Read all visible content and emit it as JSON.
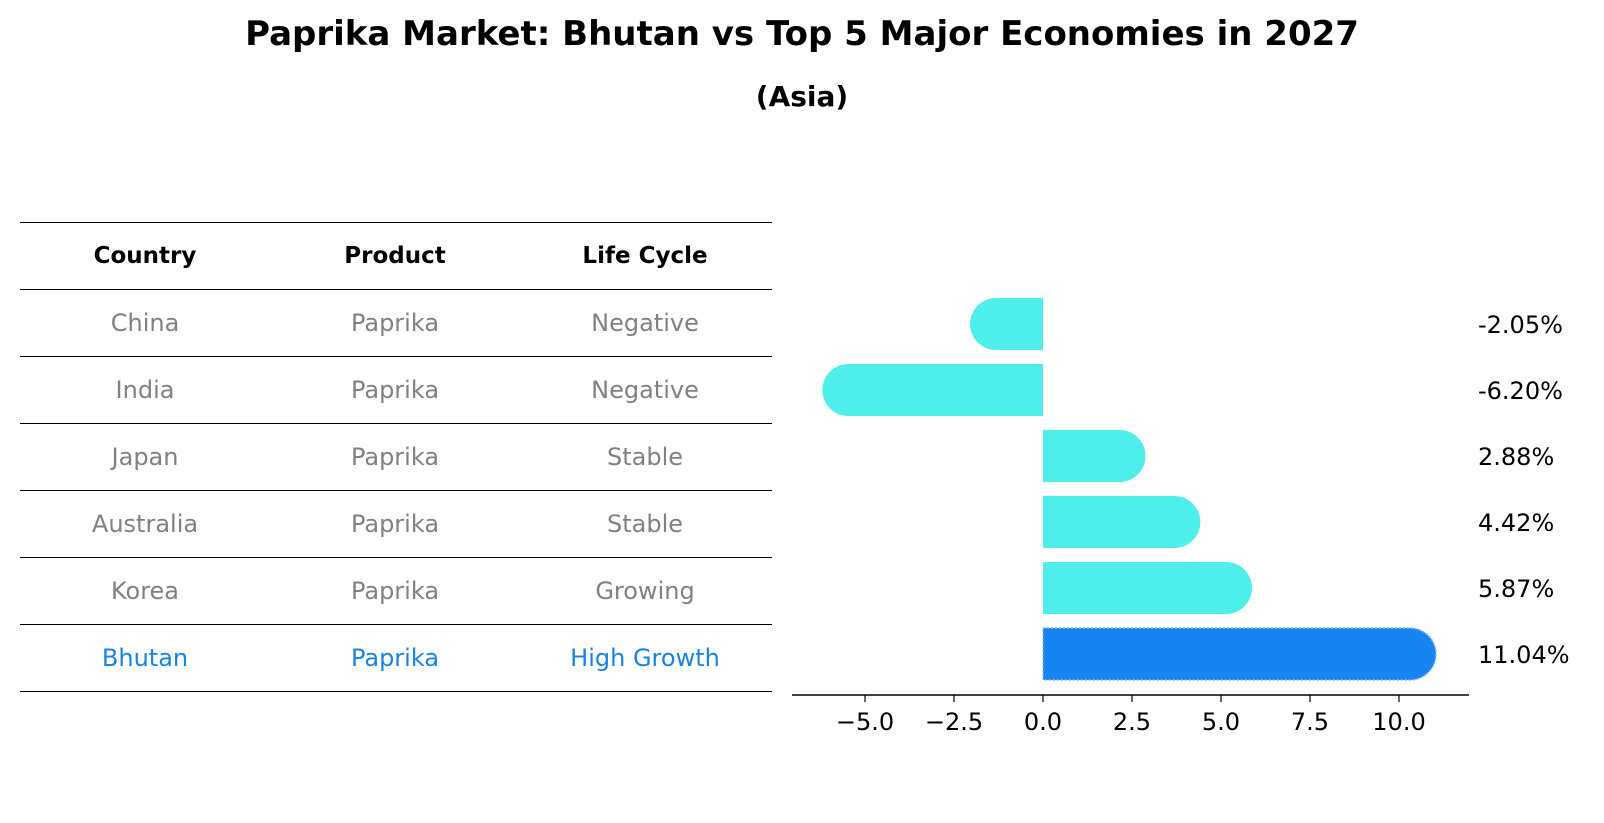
{
  "title": "Paprika Market: Bhutan vs Top 5 Major Economies in 2027",
  "subtitle": "(Asia)",
  "colors": {
    "bar": "#4eeeea",
    "highlight": "#1784f2",
    "highlight_text": "#1784e5",
    "muted_text": "#808080"
  },
  "table": {
    "headers": [
      "Country",
      "Product",
      "Life Cycle"
    ],
    "rows": [
      {
        "country": "China",
        "product": "Paprika",
        "life_cycle": "Negative",
        "highlight": false
      },
      {
        "country": "India",
        "product": "Paprika",
        "life_cycle": "Negative",
        "highlight": false
      },
      {
        "country": "Japan",
        "product": "Paprika",
        "life_cycle": "Stable",
        "highlight": false
      },
      {
        "country": "Australia",
        "product": "Paprika",
        "life_cycle": "Stable",
        "highlight": false
      },
      {
        "country": "Korea",
        "product": "Paprika",
        "life_cycle": "Growing",
        "highlight": false
      },
      {
        "country": "Bhutan",
        "product": "Paprika",
        "life_cycle": "High Growth",
        "highlight": true
      }
    ]
  },
  "chart_data": {
    "type": "bar",
    "orientation": "horizontal",
    "categories": [
      "China",
      "India",
      "Japan",
      "Australia",
      "Korea",
      "Bhutan"
    ],
    "values": [
      -2.05,
      -6.2,
      2.88,
      4.42,
      5.87,
      11.04
    ],
    "value_labels": [
      "-2.05%",
      "-6.20%",
      "2.88%",
      "4.42%",
      "5.87%",
      "11.04%"
    ],
    "highlight_category": "Bhutan",
    "xlim": [
      -7,
      12
    ],
    "xticks": [
      -5.0,
      -2.5,
      0.0,
      2.5,
      5.0,
      7.5,
      10.0
    ],
    "xtick_labels": [
      "−5.0",
      "−2.5",
      "0.0",
      "2.5",
      "5.0",
      "7.5",
      "10.0"
    ],
    "xlabel": "",
    "ylabel": ""
  }
}
